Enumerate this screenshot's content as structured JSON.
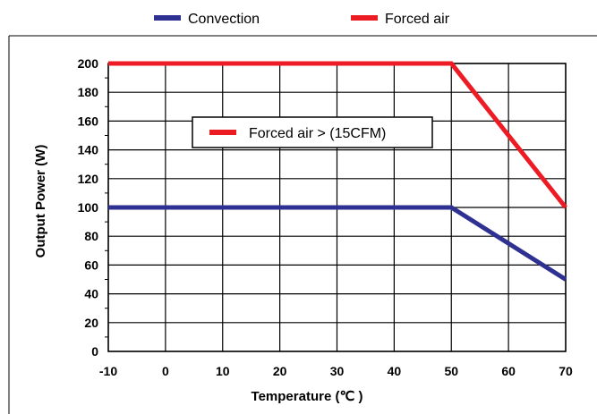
{
  "chart_data": {
    "type": "line",
    "xlabel": "Temperature (℃ )",
    "ylabel": "Output Power (W)",
    "xlim": [
      -10,
      70
    ],
    "ylim": [
      0,
      200
    ],
    "x_ticks": [
      -10,
      0,
      10,
      20,
      30,
      40,
      50,
      60,
      70
    ],
    "y_ticks": [
      0,
      20,
      40,
      60,
      80,
      100,
      120,
      140,
      160,
      180,
      200
    ],
    "grid": true,
    "legend_position": "top",
    "series": [
      {
        "name": "Convection",
        "color": "#2e3192",
        "points": [
          [
            -10,
            100
          ],
          [
            50,
            100
          ],
          [
            70,
            50
          ]
        ]
      },
      {
        "name": "Forced air",
        "color": "#ed1c24",
        "points": [
          [
            -10,
            200
          ],
          [
            50,
            200
          ],
          [
            70,
            100
          ]
        ]
      }
    ],
    "annotations": [
      {
        "text": "Forced air > (15CFM)",
        "color": "#ed1c24"
      }
    ]
  }
}
